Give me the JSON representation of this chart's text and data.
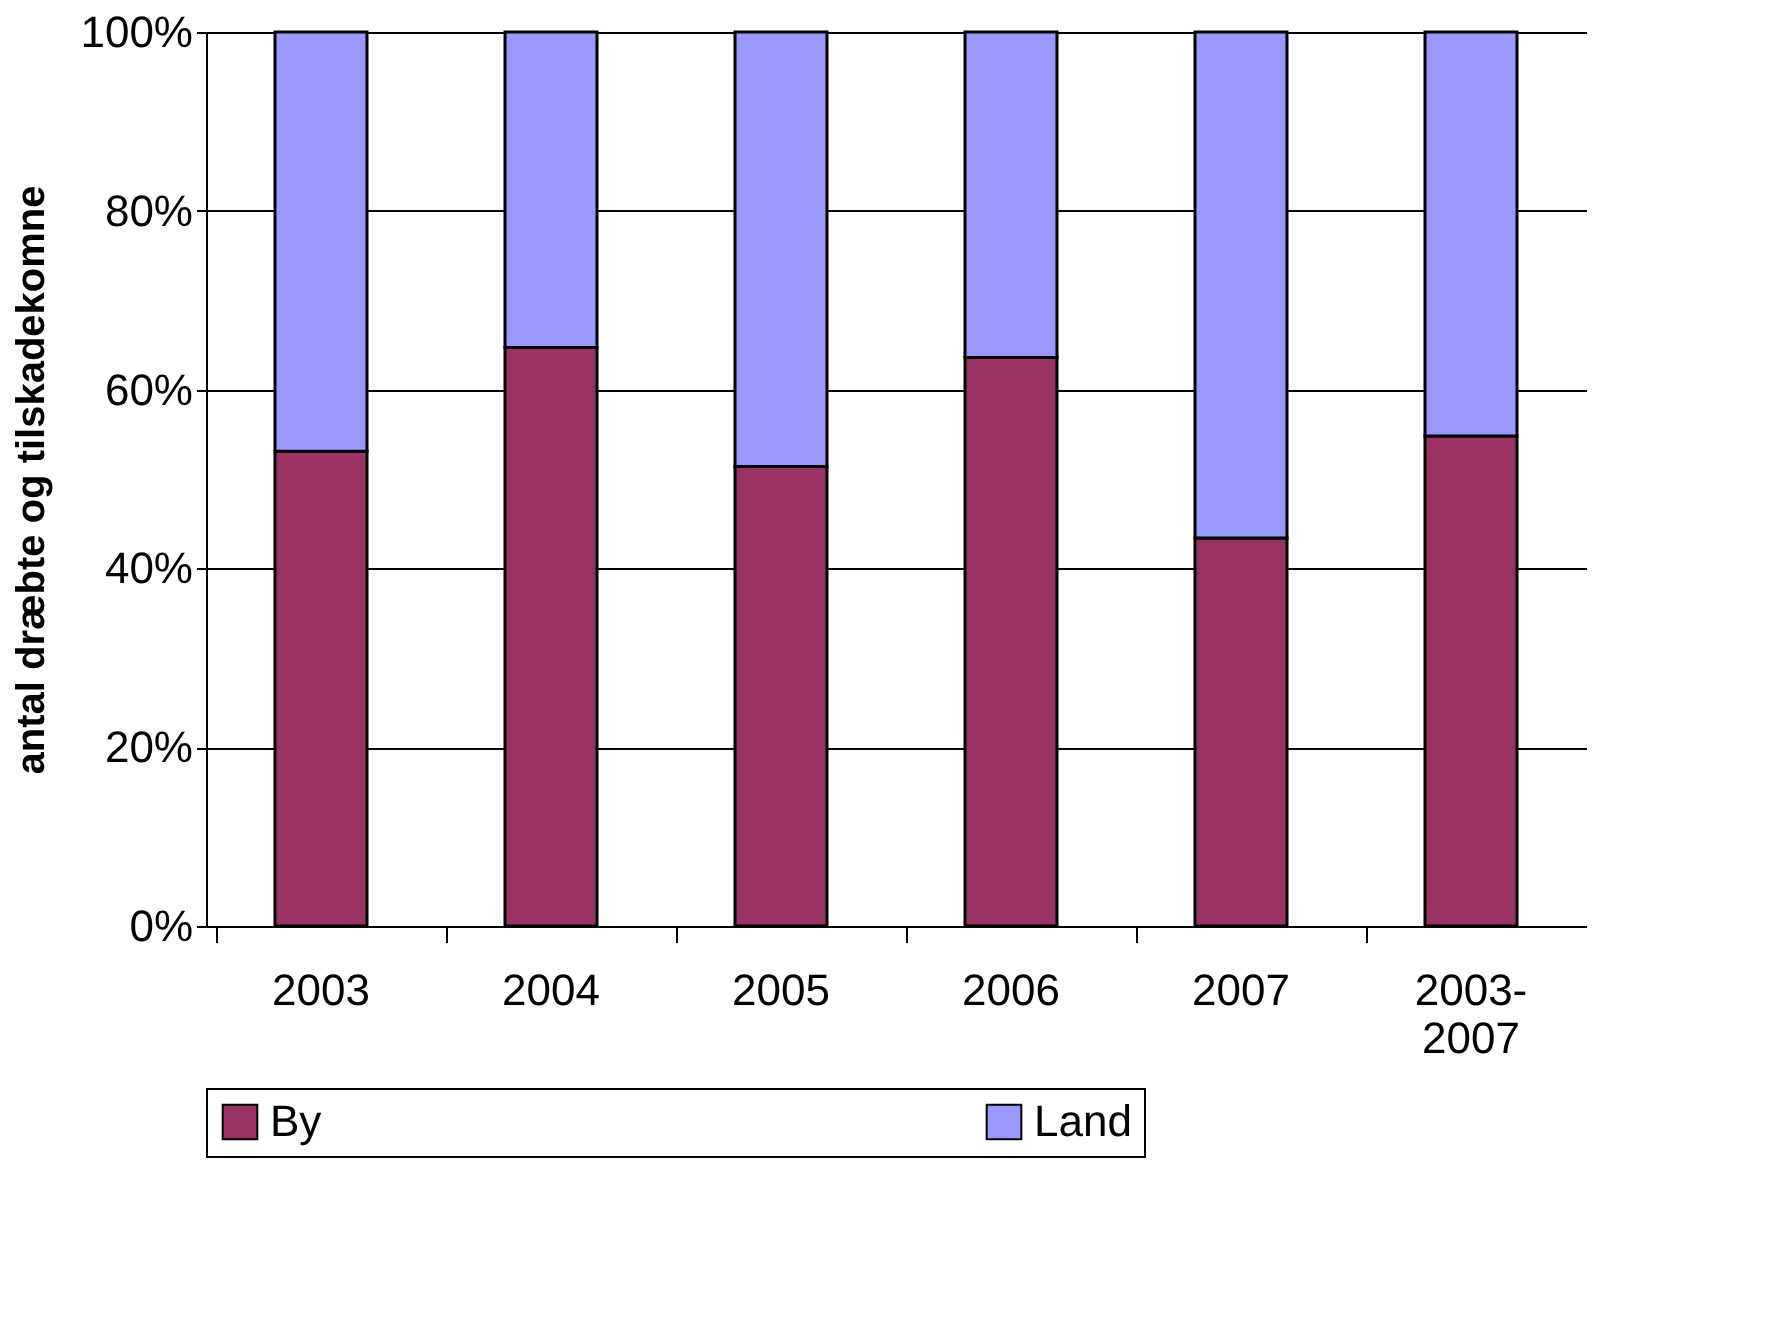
{
  "chart_data": {
    "type": "bar",
    "stacked": true,
    "ylabel": "antal dræbte og tilskadekomne",
    "categories": [
      "2003",
      "2004",
      "2005",
      "2006",
      "2007",
      "2003-2007"
    ],
    "series": [
      {
        "name": "By",
        "color": "#993366",
        "values": [
          53.1,
          64.7,
          51.4,
          63.6,
          43.4,
          54.8
        ]
      },
      {
        "name": "Land",
        "color": "#9999ff",
        "values": [
          46.9,
          35.3,
          48.6,
          36.4,
          56.6,
          45.2
        ]
      }
    ],
    "ylim": [
      0,
      100
    ],
    "yticks": [
      {
        "value": 0,
        "label": "0%"
      },
      {
        "value": 20,
        "label": "20%"
      },
      {
        "value": 40,
        "label": "40%"
      },
      {
        "value": 60,
        "label": "60%"
      },
      {
        "value": 80,
        "label": "80%"
      },
      {
        "value": 100,
        "label": "100%"
      }
    ],
    "grid": "y",
    "legend": "bottom"
  }
}
